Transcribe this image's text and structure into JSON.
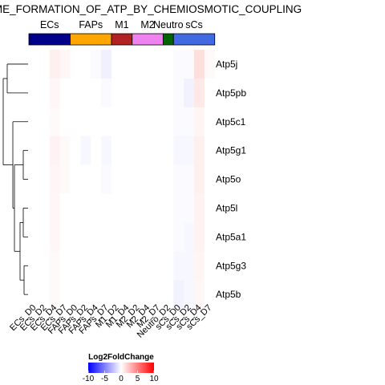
{
  "chart_data": {
    "type": "heatmap",
    "title": "ME_FORMATION_OF_ATP_BY_CHEMIOSMOTIC_COUPLING",
    "rows": [
      "Atp5j",
      "Atp5pb",
      "Atp5c1",
      "Atp5g1",
      "Atp5o",
      "Atp5l",
      "Atp5a1",
      "Atp5g3",
      "Atp5b"
    ],
    "columns": [
      "ECs_D0",
      "ECs_D2",
      "ECs_D4",
      "ECs_D7",
      "FAPs_D0",
      "FAPs_D2",
      "FAPs_D4",
      "FAPs_D7",
      "M1_D2",
      "M1_D4",
      "M2_D2",
      "M2_D4",
      "M2_D7",
      "Neutro_D2",
      "sCs_D0",
      "sCs_D2",
      "sCs_D4",
      "sCs_D7"
    ],
    "column_groups": [
      {
        "name": "ECs",
        "color": "#00008B",
        "start": 0,
        "end": 3
      },
      {
        "name": "FAPs",
        "color": "#FFA500",
        "start": 4,
        "end": 7
      },
      {
        "name": "M1",
        "color": "#B22222",
        "start": 8,
        "end": 9
      },
      {
        "name": "M2",
        "color": "#EE82EE",
        "start": 10,
        "end": 12
      },
      {
        "name": "Neutro",
        "color": "#006400",
        "start": 13,
        "end": 13
      },
      {
        "name": "sCs",
        "color": "#4169E1",
        "start": 14,
        "end": 17
      }
    ],
    "values": [
      [
        0,
        0,
        0.6,
        0.3,
        0,
        0,
        -0.2,
        -0.6,
        0,
        0,
        0,
        0,
        0,
        0,
        -0.2,
        -0.2,
        1.3,
        0.2
      ],
      [
        0,
        0,
        0.3,
        0,
        0,
        0,
        0,
        -0.2,
        0,
        0,
        0,
        0,
        0,
        0,
        -0.2,
        -0.5,
        0.9,
        0
      ],
      [
        0,
        0,
        0.2,
        0,
        0,
        0,
        0,
        0,
        0,
        0,
        0,
        0,
        0,
        0,
        -0.2,
        -0.2,
        0.4,
        0
      ],
      [
        0,
        0,
        0.5,
        0.2,
        0,
        -0.3,
        0,
        -0.3,
        0,
        0,
        0,
        0,
        0,
        0,
        -0.3,
        -0.3,
        0.6,
        0
      ],
      [
        0,
        0,
        0.4,
        0.2,
        0,
        0,
        0,
        -0.2,
        0,
        0,
        0,
        0,
        0,
        0,
        -0.2,
        -0.2,
        0.6,
        0
      ],
      [
        0,
        0,
        0.3,
        0,
        0,
        0,
        0,
        0,
        0,
        0,
        0,
        0,
        0,
        0,
        -0.2,
        -0.2,
        0.5,
        0
      ],
      [
        0,
        0,
        0.3,
        0,
        0,
        0,
        0,
        0,
        0,
        0,
        0,
        0,
        0,
        0,
        -0.2,
        -0.3,
        0.5,
        0
      ],
      [
        0,
        0,
        0.2,
        0,
        0,
        0,
        0,
        0,
        0,
        0,
        0,
        0,
        0,
        0,
        -0.3,
        -0.3,
        0.4,
        0
      ],
      [
        0,
        0,
        0.2,
        0,
        0,
        0,
        0,
        0,
        0,
        0,
        0,
        0,
        0,
        0,
        -0.5,
        -0.3,
        0.3,
        0
      ]
    ],
    "legend": {
      "title": "Log2FoldChange",
      "ticks": [
        -10,
        -5,
        0,
        5,
        10
      ],
      "range": [
        -10,
        10
      ],
      "colors": [
        "#0000FF",
        "#FFFFFF",
        "#FF0000"
      ]
    }
  }
}
